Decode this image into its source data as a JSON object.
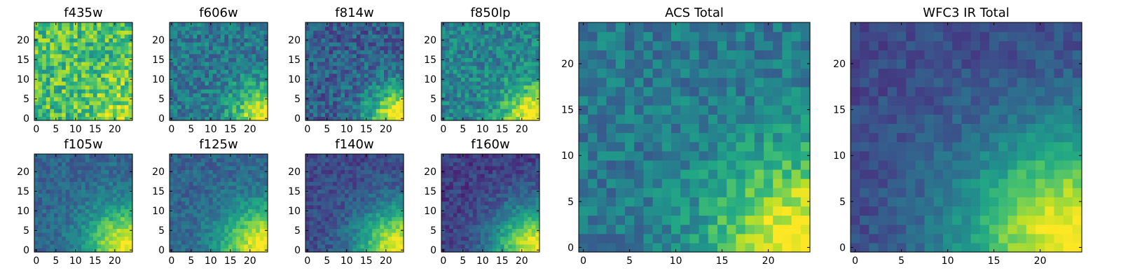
{
  "chart_data": [
    {
      "type": "heatmap",
      "title": "f435w",
      "x_ticks": [
        "0",
        "5",
        "10",
        "15",
        "20"
      ],
      "y_ticks": [
        "0",
        "5",
        "10",
        "15",
        "20"
      ],
      "xlim": [
        -0.5,
        24.5
      ],
      "ylim": [
        -0.5,
        24.5
      ],
      "grid": false,
      "colormap": "viridis",
      "pattern": {
        "base": 0.7,
        "noise": 0.22,
        "corner": 0.2,
        "radius": 6,
        "seed": 11
      }
    },
    {
      "type": "heatmap",
      "title": "f606w",
      "x_ticks": [
        "0",
        "5",
        "10",
        "15",
        "20"
      ],
      "y_ticks": [
        "0",
        "5",
        "10",
        "15",
        "20"
      ],
      "xlim": [
        -0.5,
        24.5
      ],
      "ylim": [
        -0.5,
        24.5
      ],
      "grid": false,
      "colormap": "viridis",
      "pattern": {
        "base": 0.4,
        "noise": 0.16,
        "corner": 0.6,
        "radius": 6,
        "seed": 23
      }
    },
    {
      "type": "heatmap",
      "title": "f814w",
      "x_ticks": [
        "0",
        "5",
        "10",
        "15",
        "20"
      ],
      "y_ticks": [
        "0",
        "5",
        "10",
        "15",
        "20"
      ],
      "xlim": [
        -0.5,
        24.5
      ],
      "ylim": [
        -0.5,
        24.5
      ],
      "grid": false,
      "colormap": "viridis",
      "pattern": {
        "base": 0.3,
        "noise": 0.16,
        "corner": 0.75,
        "radius": 6,
        "seed": 37
      }
    },
    {
      "type": "heatmap",
      "title": "f850lp",
      "x_ticks": [
        "0",
        "5",
        "10",
        "15",
        "20"
      ],
      "y_ticks": [
        "0",
        "5",
        "10",
        "15",
        "20"
      ],
      "xlim": [
        -0.5,
        24.5
      ],
      "ylim": [
        -0.5,
        24.5
      ],
      "grid": false,
      "colormap": "viridis",
      "pattern": {
        "base": 0.45,
        "noise": 0.16,
        "corner": 0.6,
        "radius": 6,
        "seed": 41
      }
    },
    {
      "type": "heatmap",
      "title": "f105w",
      "x_ticks": [
        "0",
        "5",
        "10",
        "15",
        "20"
      ],
      "y_ticks": [
        "0",
        "5",
        "10",
        "15",
        "20"
      ],
      "xlim": [
        -0.5,
        24.5
      ],
      "ylim": [
        -0.5,
        24.5
      ],
      "grid": false,
      "colormap": "viridis",
      "pattern": {
        "base": 0.32,
        "noise": 0.1,
        "corner": 0.7,
        "radius": 8,
        "seed": 53
      }
    },
    {
      "type": "heatmap",
      "title": "f125w",
      "x_ticks": [
        "0",
        "5",
        "10",
        "15",
        "20"
      ],
      "y_ticks": [
        "0",
        "5",
        "10",
        "15",
        "20"
      ],
      "xlim": [
        -0.5,
        24.5
      ],
      "ylim": [
        -0.5,
        24.5
      ],
      "grid": false,
      "colormap": "viridis",
      "pattern": {
        "base": 0.32,
        "noise": 0.1,
        "corner": 0.7,
        "radius": 8,
        "seed": 61
      }
    },
    {
      "type": "heatmap",
      "title": "f140w",
      "x_ticks": [
        "0",
        "5",
        "10",
        "15",
        "20"
      ],
      "y_ticks": [
        "0",
        "5",
        "10",
        "15",
        "20"
      ],
      "xlim": [
        -0.5,
        24.5
      ],
      "ylim": [
        -0.5,
        24.5
      ],
      "grid": false,
      "colormap": "viridis",
      "pattern": {
        "base": 0.22,
        "noise": 0.1,
        "corner": 0.78,
        "radius": 8,
        "seed": 71
      }
    },
    {
      "type": "heatmap",
      "title": "f160w",
      "x_ticks": [
        "0",
        "5",
        "10",
        "15",
        "20"
      ],
      "y_ticks": [
        "0",
        "5",
        "10",
        "15",
        "20"
      ],
      "xlim": [
        -0.5,
        24.5
      ],
      "ylim": [
        -0.5,
        24.5
      ],
      "grid": false,
      "colormap": "viridis",
      "pattern": {
        "base": 0.18,
        "noise": 0.1,
        "corner": 0.82,
        "radius": 8,
        "seed": 83
      }
    },
    {
      "type": "heatmap",
      "title": "ACS Total",
      "x_ticks": [
        "0",
        "5",
        "10",
        "15",
        "20"
      ],
      "y_ticks": [
        "0",
        "5",
        "10",
        "15",
        "20"
      ],
      "xlim": [
        -0.5,
        24.5
      ],
      "ylim": [
        -0.5,
        24.5
      ],
      "grid": false,
      "colormap": "viridis",
      "pattern": {
        "base": 0.4,
        "noise": 0.13,
        "corner": 0.65,
        "radius": 7,
        "seed": 97
      }
    },
    {
      "type": "heatmap",
      "title": "WFC3 IR Total",
      "x_ticks": [
        "0",
        "5",
        "10",
        "15",
        "20"
      ],
      "y_ticks": [
        "0",
        "5",
        "10",
        "15",
        "20"
      ],
      "xlim": [
        -0.5,
        24.5
      ],
      "ylim": [
        -0.5,
        24.5
      ],
      "grid": false,
      "colormap": "viridis",
      "pattern": {
        "base": 0.22,
        "noise": 0.08,
        "corner": 0.8,
        "radius": 9,
        "seed": 101
      }
    }
  ]
}
